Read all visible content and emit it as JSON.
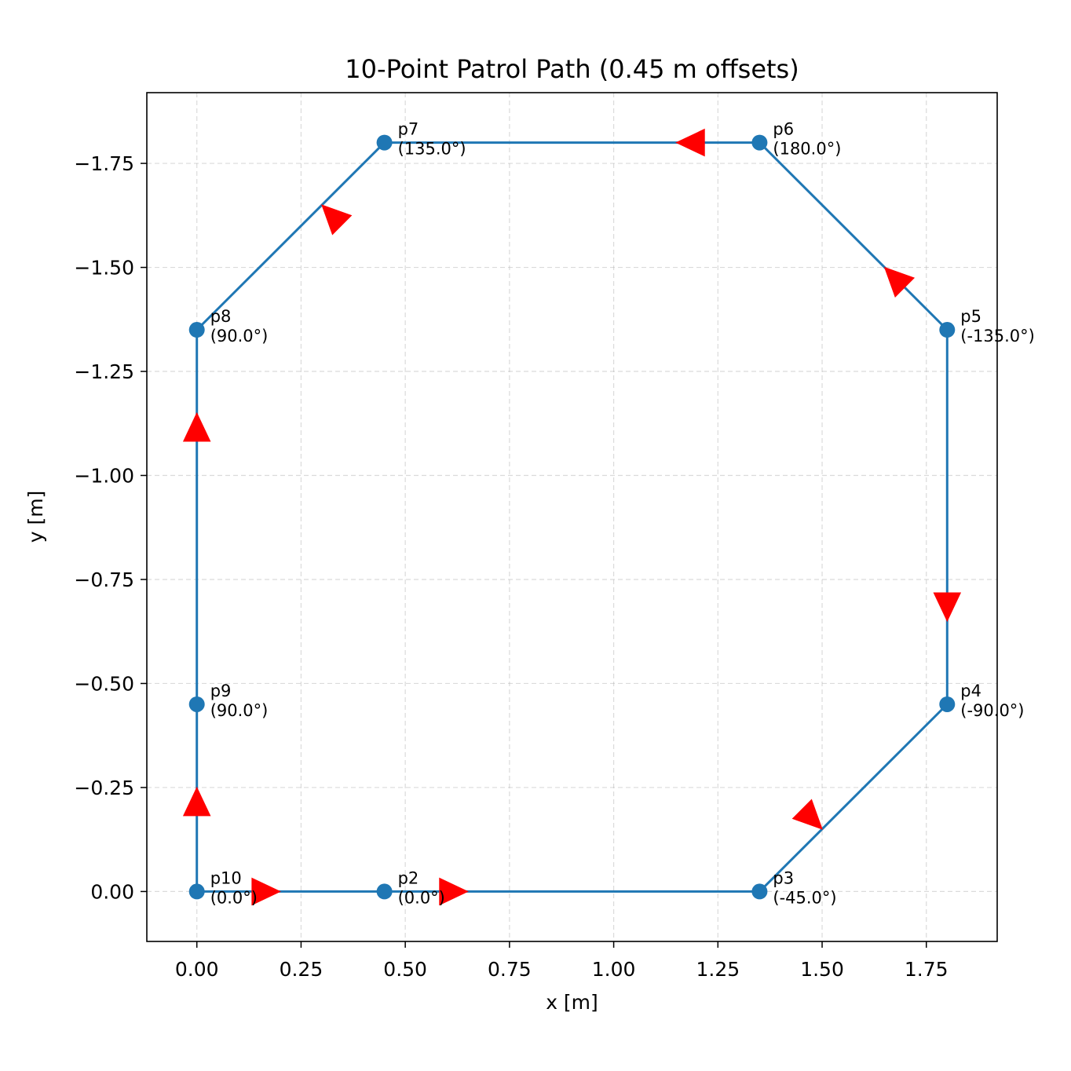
{
  "chart_data": {
    "type": "line",
    "title": "10-Point Patrol Path (0.45 m offsets)",
    "xlabel": "x [m]",
    "ylabel": "y [m]",
    "xlim": [
      -0.12,
      1.92
    ],
    "ylim": [
      0.12,
      -1.92
    ],
    "y_inverted": true,
    "grid": true,
    "xticks": [
      "0.00",
      "0.25",
      "0.50",
      "0.75",
      "1.00",
      "1.25",
      "1.50",
      "1.75"
    ],
    "yticks": [
      "0.00",
      "−0.25",
      "−0.50",
      "−0.75",
      "−1.00",
      "−1.25",
      "−1.50",
      "−1.75"
    ],
    "xtick_values": [
      0,
      0.25,
      0.5,
      0.75,
      1.0,
      1.25,
      1.5,
      1.75
    ],
    "ytick_values": [
      0,
      -0.25,
      -0.5,
      -0.75,
      -1.0,
      -1.25,
      -1.5,
      -1.75
    ],
    "points": [
      {
        "name": "p10",
        "x": 0.0,
        "y": 0.0,
        "heading": "(0.0°)"
      },
      {
        "name": "p2",
        "x": 0.45,
        "y": 0.0,
        "heading": "(0.0°)"
      },
      {
        "name": "p3",
        "x": 1.35,
        "y": 0.0,
        "heading": "(-45.0°)"
      },
      {
        "name": "p4",
        "x": 1.8,
        "y": -0.45,
        "heading": "(-90.0°)"
      },
      {
        "name": "p5",
        "x": 1.8,
        "y": -1.35,
        "heading": "(-135.0°)"
      },
      {
        "name": "p6",
        "x": 1.35,
        "y": -1.8,
        "heading": "(180.0°)"
      },
      {
        "name": "p7",
        "x": 0.45,
        "y": -1.8,
        "heading": "(135.0°)"
      },
      {
        "name": "p8",
        "x": 0.0,
        "y": -1.35,
        "heading": "(90.0°)"
      },
      {
        "name": "p9",
        "x": 0.0,
        "y": -0.45,
        "heading": "(90.0°)"
      }
    ],
    "path_order": [
      "p10",
      "p2",
      "p3",
      "p4",
      "p5",
      "p6",
      "p7",
      "p8",
      "p9",
      "p10"
    ],
    "arrows": [
      {
        "x": 0.2,
        "y": 0.0,
        "angle_deg": 0
      },
      {
        "x": 0.65,
        "y": 0.0,
        "angle_deg": 0
      },
      {
        "x": 1.5,
        "y": -0.15,
        "angle_deg": 45
      },
      {
        "x": 1.8,
        "y": -0.65,
        "angle_deg": 90
      },
      {
        "x": 1.65,
        "y": -1.5,
        "angle_deg": -135
      },
      {
        "x": 1.15,
        "y": -1.8,
        "angle_deg": 180
      },
      {
        "x": 0.3,
        "y": -1.65,
        "angle_deg": -135
      },
      {
        "x": 0.0,
        "y": -1.15,
        "angle_deg": -90
      },
      {
        "x": 0.0,
        "y": -0.25,
        "angle_deg": -90
      }
    ],
    "colors": {
      "line": "#1f77b4",
      "marker": "#1f77b4",
      "arrow": "#ff0000",
      "grid": "#b0b0b0"
    }
  }
}
